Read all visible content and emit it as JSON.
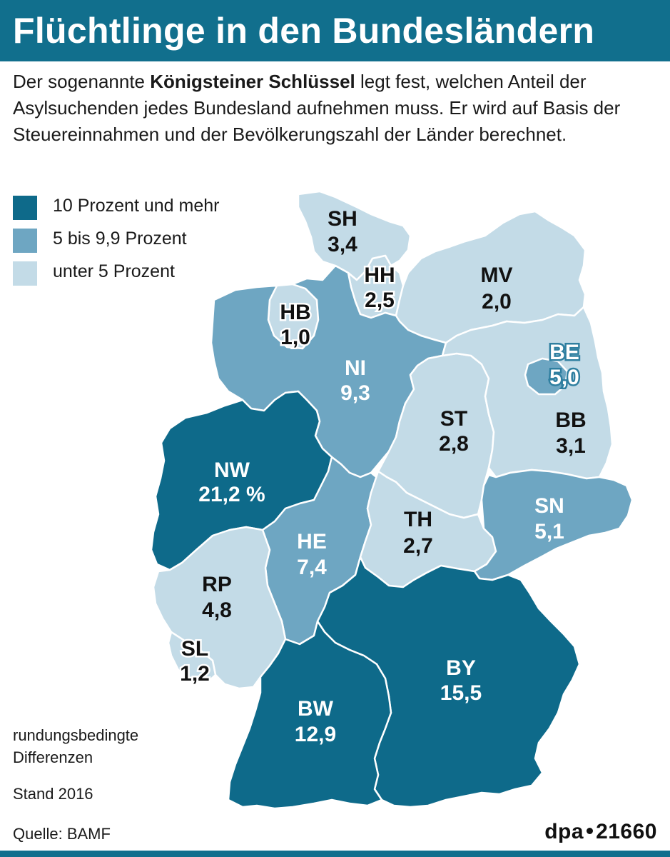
{
  "title": "Flüchtlinge in den Bundesländern",
  "intro": {
    "part1": "Der sogenannte ",
    "bold": "Königsteiner Schlüssel",
    "part2": " legt fest, welchen Anteil der Asylsuchenden jedes Bundesland aufnehmen muss. Er wird auf Basis der Steuereinnahmen und der Bevölkerungszahl der Länder berechnet."
  },
  "colors": {
    "dark": "#0e6a8a",
    "mid": "#6ea6c2",
    "light": "#c3dbe7",
    "border": "#ffffff",
    "label_dark_text": "#111111",
    "label_light_text": "#ffffff"
  },
  "legend": [
    {
      "label": "10 Prozent und mehr",
      "color": "#0e6a8a"
    },
    {
      "label": "5 bis 9,9 Prozent",
      "color": "#6ea6c2"
    },
    {
      "label": "unter 5 Prozent",
      "color": "#c3dbe7"
    }
  ],
  "states": [
    {
      "code": "SH",
      "value": "3,4",
      "class": "light"
    },
    {
      "code": "HH",
      "value": "2,5",
      "class": "light"
    },
    {
      "code": "MV",
      "value": "2,0",
      "class": "light"
    },
    {
      "code": "HB",
      "value": "1,0",
      "class": "light"
    },
    {
      "code": "NI",
      "value": "9,3",
      "class": "mid"
    },
    {
      "code": "BE",
      "value": "5,0",
      "class": "mid"
    },
    {
      "code": "BB",
      "value": "3,1",
      "class": "light"
    },
    {
      "code": "ST",
      "value": "2,8",
      "class": "light"
    },
    {
      "code": "NW",
      "value": "21,2 %",
      "class": "dark"
    },
    {
      "code": "SN",
      "value": "5,1",
      "class": "mid"
    },
    {
      "code": "TH",
      "value": "2,7",
      "class": "light"
    },
    {
      "code": "HE",
      "value": "7,4",
      "class": "mid"
    },
    {
      "code": "RP",
      "value": "4,8",
      "class": "light"
    },
    {
      "code": "SL",
      "value": "1,2",
      "class": "light"
    },
    {
      "code": "BY",
      "value": "15,5",
      "class": "dark"
    },
    {
      "code": "BW",
      "value": "12,9",
      "class": "dark"
    }
  ],
  "notes": {
    "rounding_line1": "rundungsbedingte",
    "rounding_line2": "Differenzen",
    "stand": "Stand 2016",
    "source": "Quelle: BAMF"
  },
  "credit": {
    "agency": "dpa",
    "number": "21660"
  }
}
